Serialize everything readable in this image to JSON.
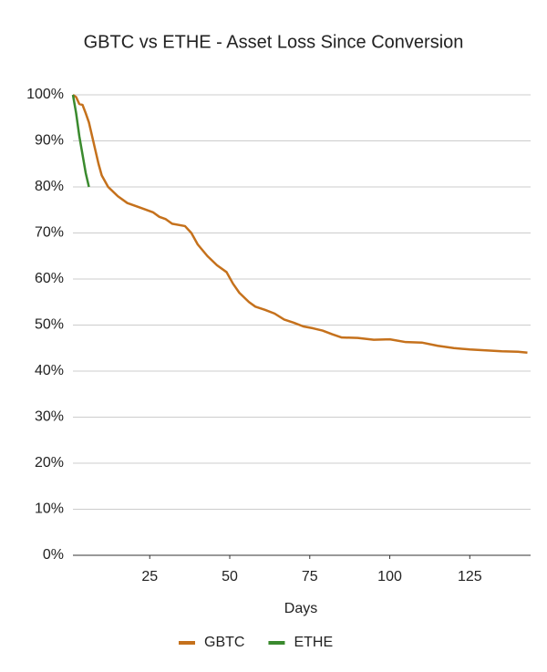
{
  "chart_data": {
    "type": "line",
    "title": "GBTC vs ETHE - Asset Loss Since Conversion",
    "x_label": "Days",
    "series": [
      {
        "name": "GBTC",
        "color": "#c5711c",
        "x": [
          1,
          2,
          3,
          4,
          5,
          6,
          7,
          8,
          9,
          10,
          12,
          15,
          18,
          22,
          26,
          28,
          30,
          32,
          36,
          38,
          40,
          43,
          46,
          49,
          51,
          53,
          56,
          58,
          61,
          64,
          67,
          70,
          73,
          76,
          79,
          82,
          85,
          90,
          95,
          100,
          105,
          110,
          115,
          120,
          125,
          130,
          135,
          140,
          143
        ],
        "values": [
          100,
          99.5,
          98,
          97.8,
          96,
          94,
          91,
          88,
          85,
          82.5,
          80,
          78,
          76.5,
          75.5,
          74.5,
          73.5,
          73,
          72,
          71.5,
          70,
          67.5,
          65,
          63,
          61.5,
          59,
          57,
          55,
          54,
          53.3,
          52.5,
          51.2,
          50.5,
          49.7,
          49.3,
          48.8,
          48,
          47.3,
          47.2,
          46.8,
          46.9,
          46.3,
          46.2,
          45.5,
          45,
          44.7,
          44.5,
          44.3,
          44.2,
          44
        ]
      },
      {
        "name": "ETHE",
        "color": "#3a8a2e",
        "x": [
          1,
          2,
          3,
          4,
          5,
          6
        ],
        "values": [
          100,
          96,
          91,
          87,
          83,
          80
        ]
      }
    ],
    "xlim": [
      1,
      144
    ],
    "xticks": [
      25,
      50,
      75,
      100,
      125
    ],
    "ylim": [
      0,
      100
    ],
    "yticks": [
      {
        "value": 0,
        "label": "0%"
      },
      {
        "value": 10,
        "label": "10%"
      },
      {
        "value": 20,
        "label": "20%"
      },
      {
        "value": 30,
        "label": "30%"
      },
      {
        "value": 40,
        "label": "40%"
      },
      {
        "value": 50,
        "label": "50%"
      },
      {
        "value": 60,
        "label": "60%"
      },
      {
        "value": 70,
        "label": "70%"
      },
      {
        "value": 80,
        "label": "80%"
      },
      {
        "value": 90,
        "label": "90%"
      },
      {
        "value": 100,
        "label": "100%"
      }
    ],
    "grid": true,
    "legend": "bottom"
  }
}
